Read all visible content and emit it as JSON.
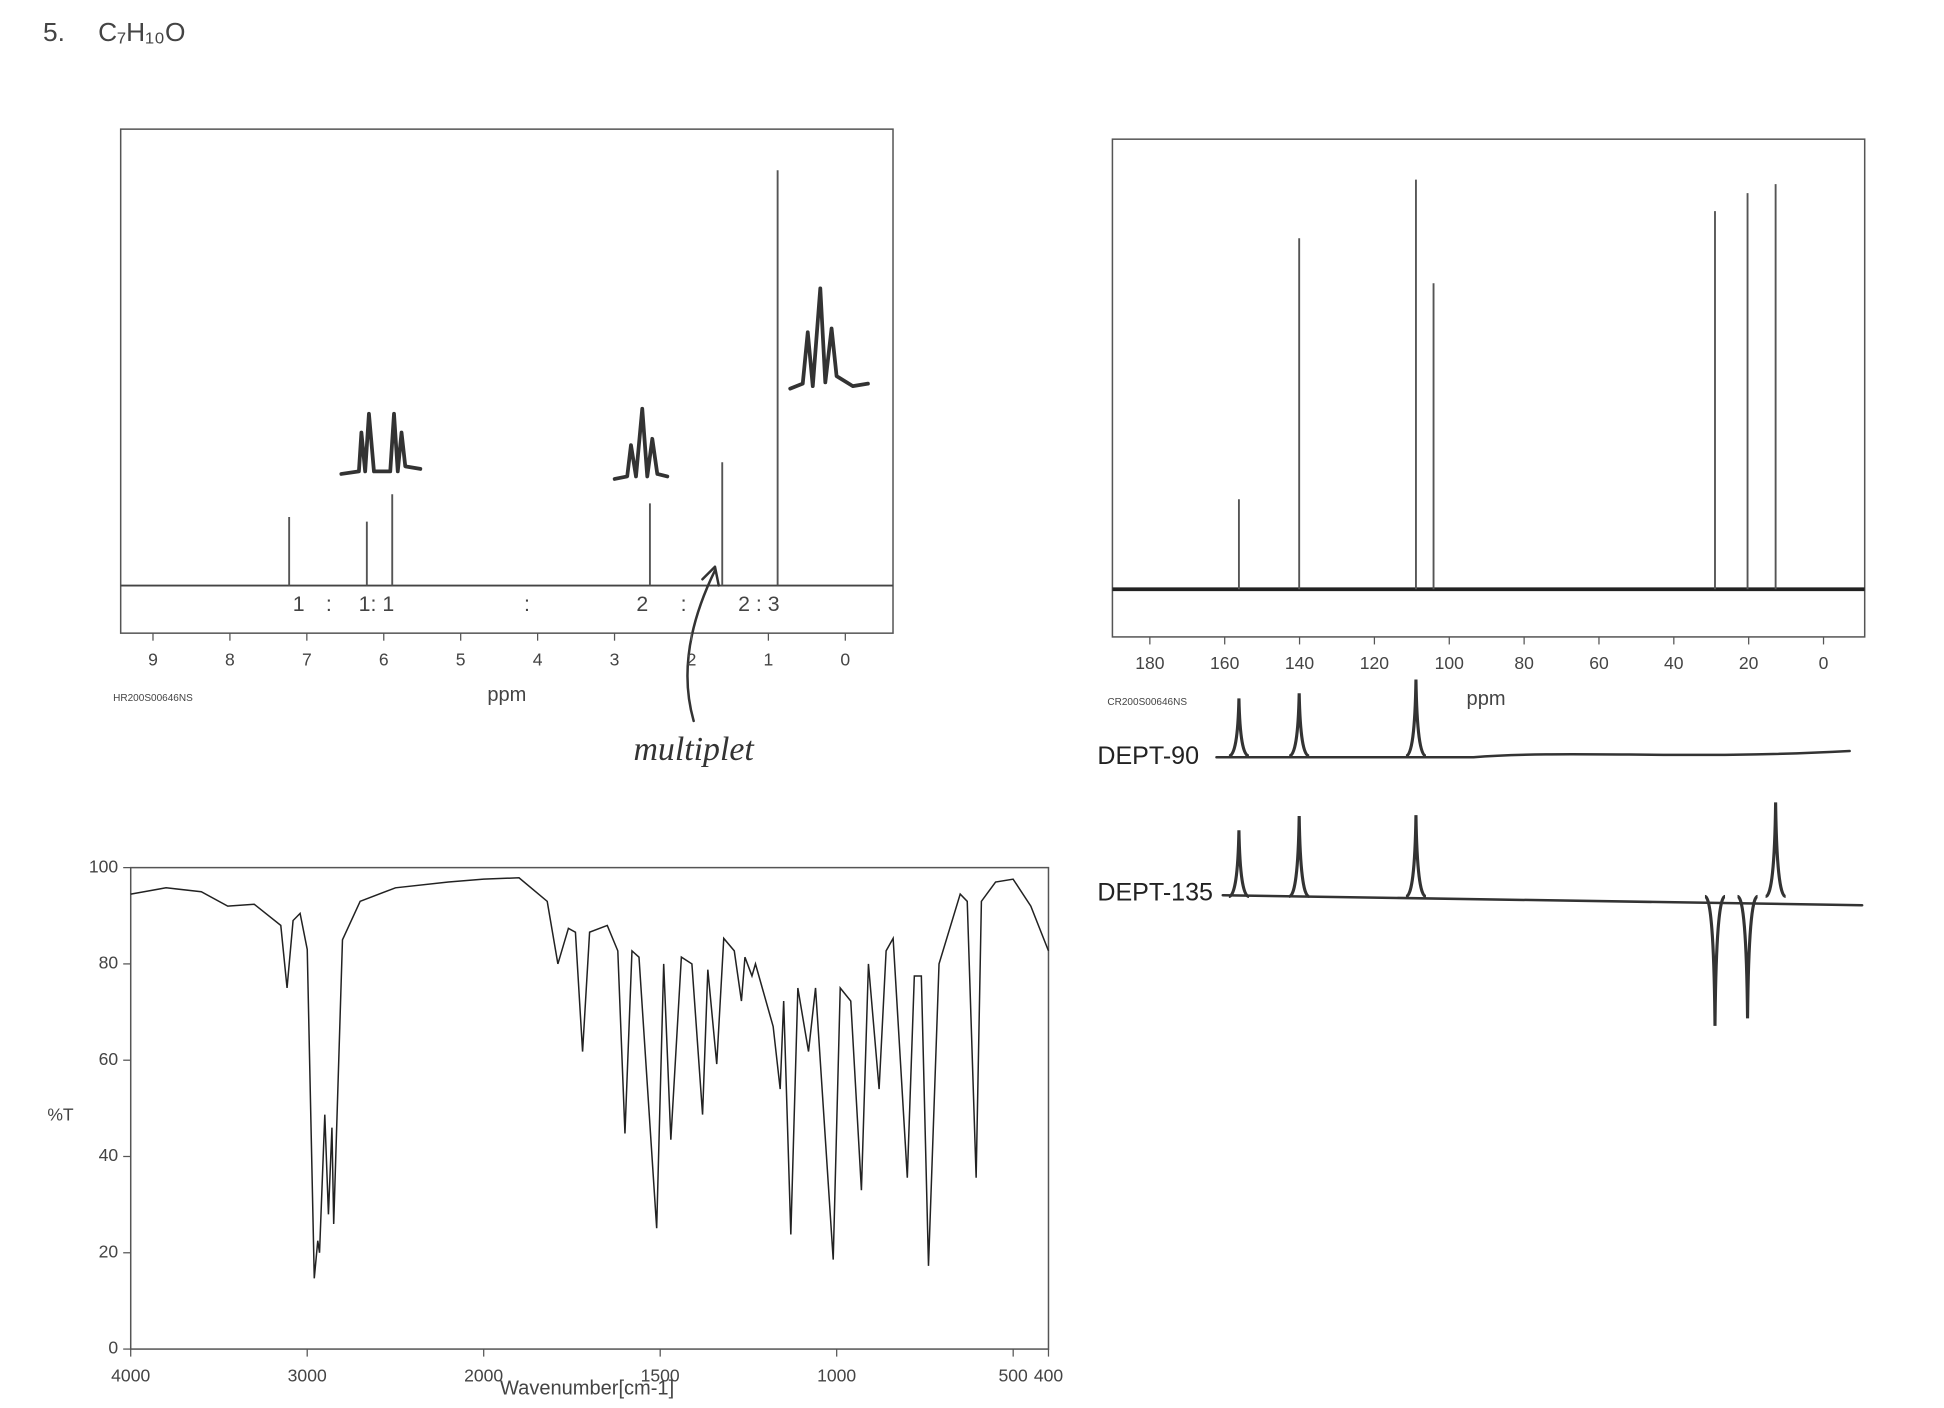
{
  "problem": {
    "number": "5.",
    "formula": "C₇H₁₀O",
    "note": "multiplet",
    "integrals": [
      "1",
      ":",
      "1: 1",
      ":",
      "2",
      ":",
      "2 : 3"
    ]
  },
  "chart_data": [
    {
      "type": "stick",
      "code": "HR200S00646NS",
      "x_label": "ppm",
      "x": [
        7.23,
        6.22,
        5.89,
        2.54,
        1.6,
        0.88
      ],
      "values": [
        15,
        14,
        20,
        18,
        27,
        91
      ],
      "xlim": [
        9.42,
        -0.62
      ],
      "xticks": [
        9,
        8,
        7,
        6,
        5,
        4,
        3,
        2,
        1,
        0
      ],
      "ylim": [
        0,
        100
      ],
      "color": "#555555"
    },
    {
      "type": "stick",
      "code": "CR200S00646NS",
      "x_label": "ppm",
      "x": [
        156.2,
        140.1,
        108.9,
        104.2,
        29.0,
        20.3,
        12.8
      ],
      "values": [
        20,
        78,
        91,
        68,
        84,
        88,
        90
      ],
      "xlim": [
        190,
        -11
      ],
      "xticks": [
        180,
        160,
        140,
        120,
        100,
        80,
        60,
        40,
        20,
        0
      ],
      "ylim": [
        0,
        100
      ],
      "color": "#555555"
    },
    {
      "type": "peaks",
      "title": "DEPT-90",
      "x": [
        156.2,
        140.1,
        108.9
      ],
      "values": [
        92,
        100,
        122
      ],
      "xlim": [
        190,
        -11
      ],
      "color": "#333333"
    },
    {
      "type": "peaks",
      "title": "DEPT-135",
      "x": [
        156.2,
        140.1,
        108.9,
        12.8,
        29.0,
        20.3
      ],
      "values": [
        88,
        107,
        108,
        125,
        -172,
        -162
      ],
      "xlim": [
        190,
        -11
      ],
      "color": "#333333"
    },
    {
      "type": "line",
      "x_label": "Wavenumber[cm-1]",
      "y_label": "%T",
      "x": [
        4000,
        3800,
        3600,
        3450,
        3300,
        3150,
        3114,
        3080,
        3040,
        3000,
        2960,
        2940,
        2930,
        2900,
        2880,
        2860,
        2850,
        2800,
        2700,
        2500,
        2200,
        2000,
        1900,
        1820,
        1790,
        1760,
        1740,
        1720,
        1700,
        1650,
        1620,
        1600,
        1580,
        1560,
        1510,
        1490,
        1470,
        1440,
        1410,
        1380,
        1365,
        1340,
        1320,
        1290,
        1270,
        1260,
        1240,
        1230,
        1180,
        1160,
        1150,
        1130,
        1110,
        1080,
        1060,
        1010,
        990,
        960,
        930,
        910,
        880,
        860,
        840,
        800,
        780,
        760,
        740,
        710,
        650,
        630,
        605,
        590,
        550,
        500,
        450,
        400
      ],
      "values": [
        94.5,
        95.8,
        95,
        92,
        92.4,
        88,
        75,
        89,
        90.5,
        83,
        14.7,
        22.5,
        20,
        48.7,
        28,
        46,
        26,
        85,
        93,
        95.8,
        97,
        97.6,
        97.9,
        93,
        80,
        87.4,
        86.6,
        61.8,
        86.6,
        88,
        82.7,
        44.8,
        82.7,
        81.4,
        25.1,
        80,
        43.5,
        81.4,
        80,
        48.7,
        78.8,
        59.2,
        85.3,
        82.7,
        72.3,
        81.4,
        77.5,
        80,
        67,
        54,
        72.3,
        23.8,
        75,
        61.8,
        75,
        18.6,
        75,
        72.3,
        33,
        80,
        54,
        82.7,
        85.3,
        35.6,
        77.5,
        77.5,
        17.3,
        80,
        94.5,
        93,
        35.6,
        93,
        97,
        97.6,
        92,
        82.7
      ],
      "xlim": [
        4000,
        400
      ],
      "xticks": [
        4000,
        3000,
        2000,
        1500,
        1000,
        500,
        400
      ],
      "xscale": {
        "break": 2000,
        "factor": 2
      },
      "ylim": [
        0,
        100
      ],
      "yticks": [
        0,
        20,
        40,
        60,
        80,
        100
      ],
      "color": "#222222"
    }
  ]
}
